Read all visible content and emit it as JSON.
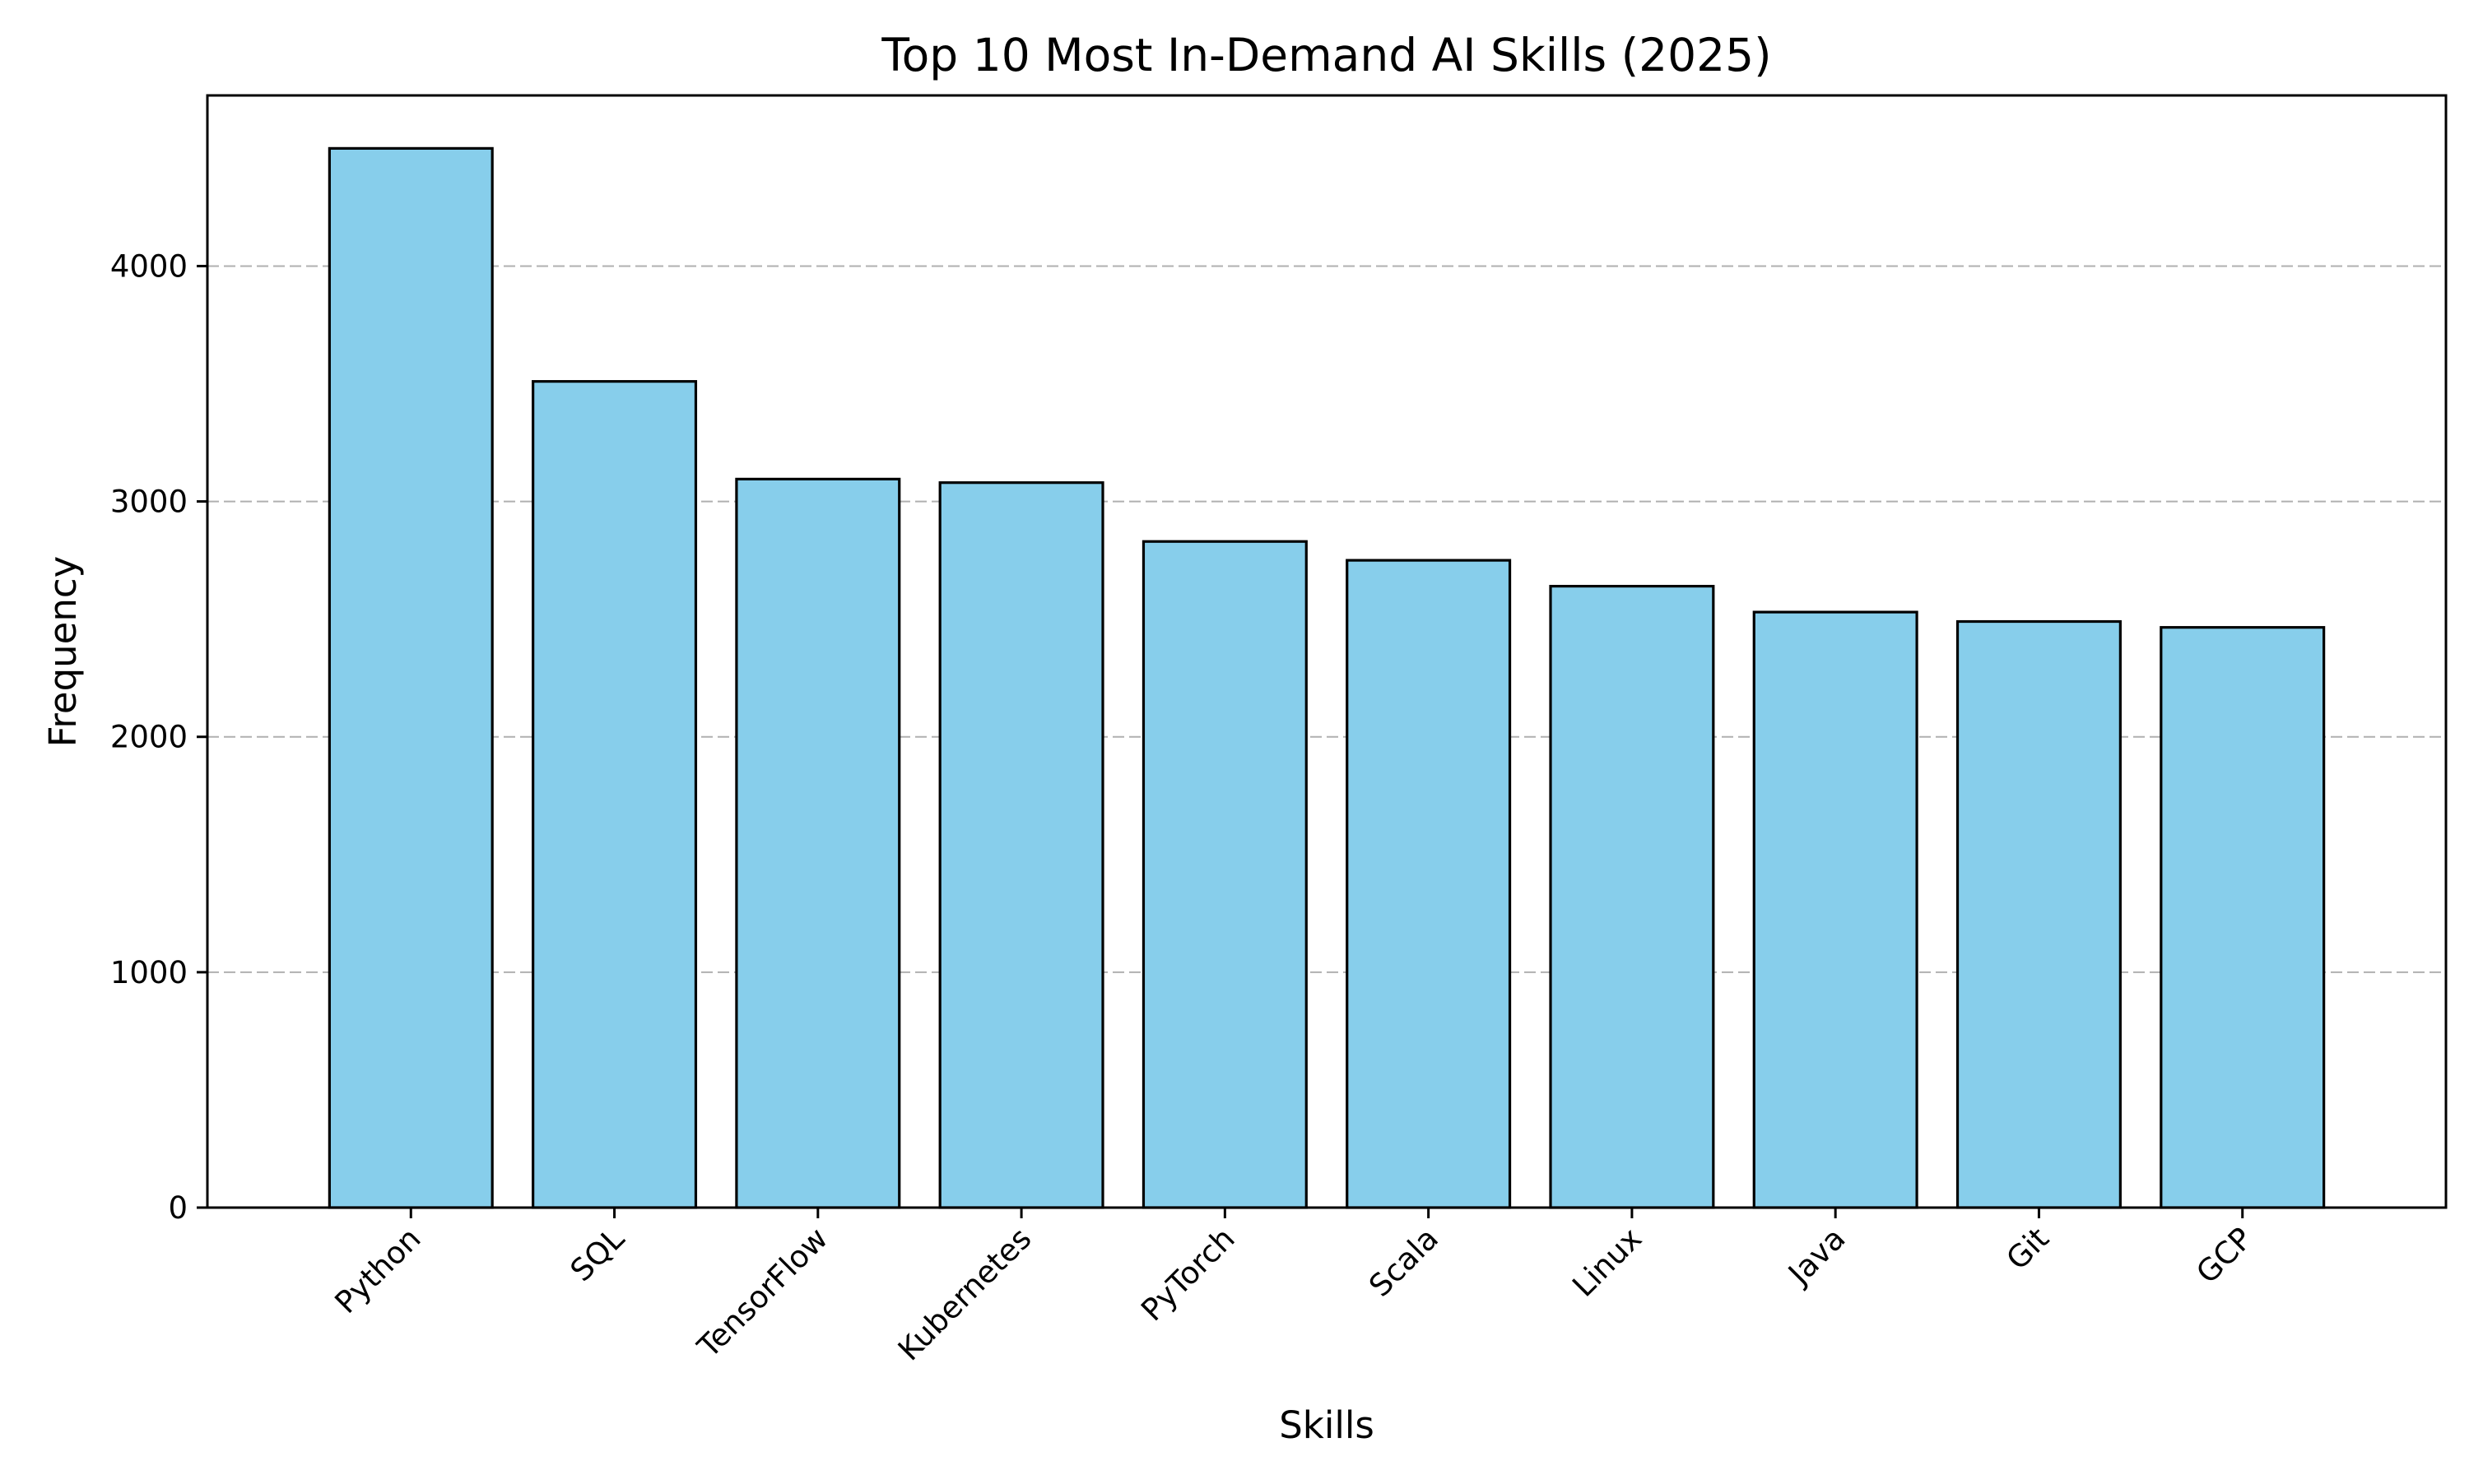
{
  "chart_data": {
    "type": "bar",
    "title": "Top 10 Most In-Demand AI Skills (2025)",
    "xlabel": "Skills",
    "ylabel": "Frequency",
    "categories": [
      "Python",
      "SQL",
      "TensorFlow",
      "Kubernetes",
      "PyTorch",
      "Scala",
      "Linux",
      "Java",
      "Git",
      "GCP"
    ],
    "values": [
      4500,
      3510,
      3095,
      3080,
      2830,
      2750,
      2640,
      2530,
      2490,
      2465
    ],
    "ylim": [
      0,
      4725
    ],
    "yticks": [
      0,
      1000,
      2000,
      3000,
      4000
    ],
    "ytick_labels": [
      "0",
      "1000",
      "2000",
      "3000",
      "4000"
    ],
    "grid": "y-axis dashed",
    "legend": "none",
    "colors": {
      "bar_fill": "#87CEEB",
      "bar_edge": "#000000",
      "grid": "#b0b0b0"
    }
  }
}
